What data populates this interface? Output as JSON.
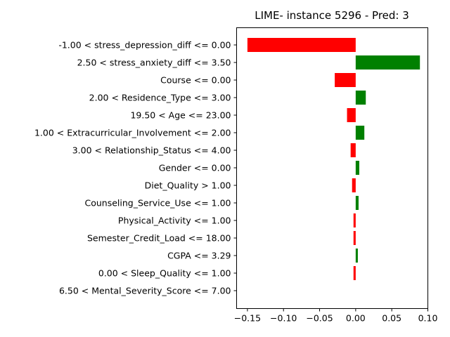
{
  "chart_data": {
    "type": "bar",
    "orientation": "horizontal",
    "title": "LIME- instance 5296 - Pred: 3",
    "xlabel": "",
    "ylabel": "",
    "xlim": [
      -0.165,
      0.1
    ],
    "x_ticks": [
      -0.15,
      -0.1,
      -0.05,
      0.0,
      0.05,
      0.1
    ],
    "x_tick_labels": [
      "−0.15",
      "−0.10",
      "−0.05",
      "0.00",
      "0.05",
      "0.10"
    ],
    "grid": false,
    "legend": "none",
    "colors": {
      "positive": "#008000",
      "negative": "#ff0000"
    },
    "categories": [
      "-1.00 < stress_depression_diff <= 0.00",
      "2.50 < stress_anxiety_diff <= 3.50",
      "Course <= 0.00",
      "2.00 < Residence_Type <= 3.00",
      "19.50 < Age <= 23.00",
      "1.00 < Extracurricular_Involvement <= 2.00",
      "3.00 < Relationship_Status <= 4.00",
      "Gender <= 0.00",
      "Diet_Quality > 1.00",
      "Counseling_Service_Use <= 1.00",
      "Physical_Activity <= 1.00",
      "Semester_Credit_Load <= 18.00",
      "CGPA <= 3.29",
      "0.00 < Sleep_Quality <= 1.00",
      "6.50 < Mental_Severity_Score <= 7.00"
    ],
    "values": [
      -0.15,
      0.089,
      -0.029,
      0.014,
      -0.012,
      0.012,
      -0.007,
      0.005,
      -0.005,
      0.004,
      -0.003,
      -0.003,
      0.003,
      -0.003,
      0.0
    ]
  }
}
